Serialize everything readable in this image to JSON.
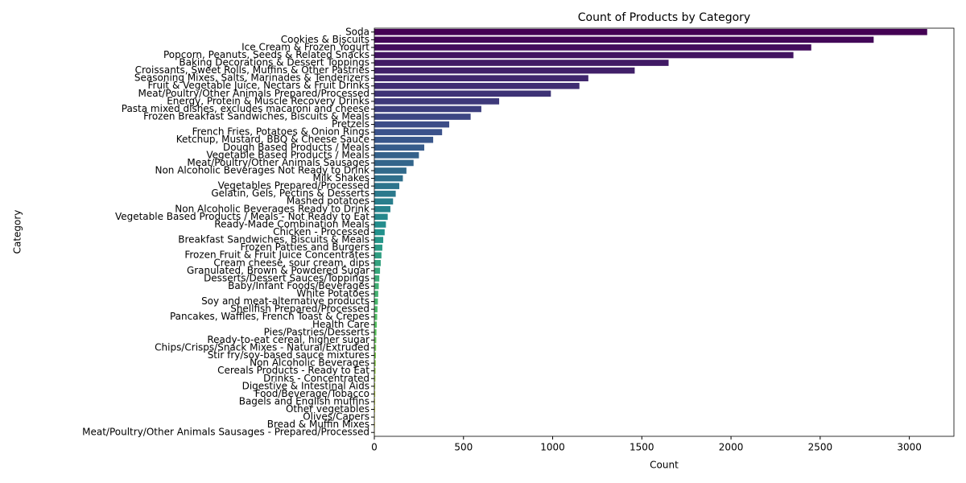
{
  "chart_data": {
    "type": "barh",
    "title": "Count of Products by Category",
    "xlabel": "Count",
    "ylabel": "Category",
    "categories": [
      "Soda",
      "Cookies & Biscuits",
      "Ice Cream & Frozen Yogurt",
      "Popcorn, Peanuts, Seeds & Related Snacks",
      "Baking Decorations & Dessert Toppings",
      "Croissants, Sweet Rolls, Muffins & Other Pastries",
      "Seasoning Mixes, Salts, Marinades & Tenderizers",
      "Fruit & Vegetable Juice, Nectars & Fruit Drinks",
      "Meat/Poultry/Other Animals Prepared/Processed",
      "Energy, Protein & Muscle Recovery Drinks",
      "Pasta mixed dishes, excludes macaroni and cheese",
      "Frozen Breakfast Sandwiches, Biscuits & Meals",
      "Pretzels",
      "French Fries, Potatoes & Onion Rings",
      "Ketchup, Mustard, BBQ & Cheese Sauce",
      "Dough Based Products / Meals",
      "Vegetable Based Products / Meals",
      "Meat/Poultry/Other Animals Sausages",
      "Non Alcoholic Beverages Not Ready to Drink",
      "Milk Shakes",
      "Vegetables Prepared/Processed",
      "Gelatin, Gels, Pectins & Desserts",
      "Mashed potatoes",
      "Non Alcoholic Beverages Ready to Drink",
      "Vegetable Based Products / Meals - Not Ready to Eat",
      "Ready-Made Combination Meals",
      "Chicken - Processed",
      "Breakfast Sandwiches, Biscuits & Meals",
      "Frozen Patties and Burgers",
      "Frozen Fruit & Fruit Juice Concentrates",
      "Cream cheese, sour cream, dips",
      "Granulated, Brown & Powdered Sugar",
      "Desserts/Dessert Sauces/Toppings",
      "Baby/Infant Foods/Beverages",
      "White Potatoes",
      "Soy and meat-alternative products",
      "Shellfish Prepared/Processed",
      "Pancakes, Waffles, French Toast & Crepes",
      "Health Care",
      "Pies/Pastries/Desserts",
      "Ready-to-eat cereal, higher sugar",
      "Chips/Crisps/Snack Mixes - Natural/Extruded",
      "Stir fry/soy-based sauce mixtures",
      "Non Alcoholic Beverages",
      "Cereals Products - Ready to Eat",
      "Drinks - Concentrated",
      "Digestive & Intestinal Aids",
      "Food/Beverage/Tobacco",
      "Bagels and English muffins",
      "Other vegetables",
      "Olives/Capers",
      "Bread & Muffin Mixes",
      "Meat/Poultry/Other Animals Sausages - Prepared/Processed"
    ],
    "values": [
      3100,
      2800,
      2450,
      2350,
      1650,
      1460,
      1200,
      1150,
      990,
      700,
      600,
      540,
      420,
      380,
      330,
      280,
      250,
      220,
      180,
      160,
      140,
      120,
      105,
      90,
      75,
      65,
      58,
      50,
      45,
      40,
      36,
      32,
      28,
      25,
      22,
      20,
      18,
      16,
      14,
      12,
      11,
      10,
      9,
      8,
      7,
      6,
      5,
      5,
      4,
      4,
      3,
      3,
      2
    ],
    "palette": "viridis",
    "xlim": [
      0,
      3250
    ],
    "xticks": [
      0,
      500,
      1000,
      1500,
      2000,
      2500,
      3000
    ]
  }
}
